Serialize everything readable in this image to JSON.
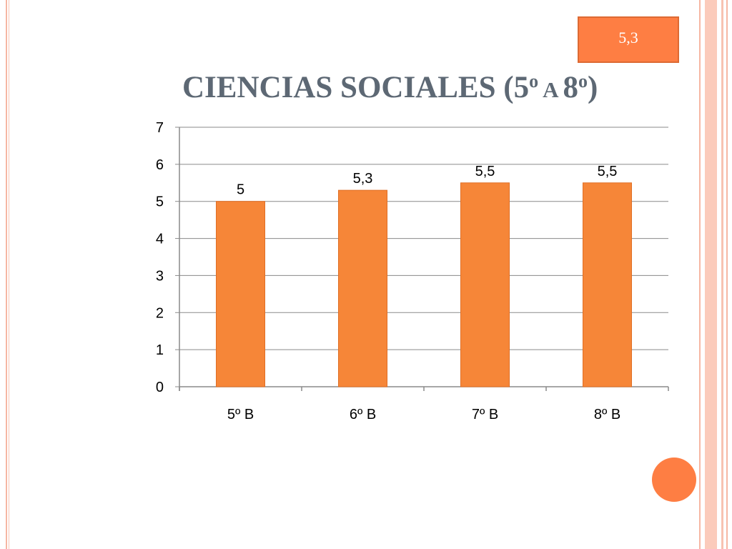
{
  "badge": {
    "text": "5,3"
  },
  "title": {
    "main": "CIENCIAS SOCIALES (5",
    "sup1": "o",
    "mid": " A ",
    "num2": "8",
    "sup2": "o",
    "end": ")"
  },
  "colors": {
    "bar": "#f68638",
    "bar_edge": "#e06f25",
    "accent": "#fe7e43",
    "grid": "#8a8a8a"
  },
  "chart_data": {
    "type": "bar",
    "categories": [
      "5º B",
      "6º B",
      "7º B",
      "8º B"
    ],
    "values": [
      5,
      5.3,
      5.5,
      5.5
    ],
    "data_labels": [
      "5",
      "5,3",
      "5,5",
      "5,5"
    ],
    "ylim": [
      0,
      7
    ],
    "yticks": [
      "0",
      "1",
      "2",
      "3",
      "4",
      "5",
      "6",
      "7"
    ],
    "grid": true,
    "legend": "none"
  }
}
